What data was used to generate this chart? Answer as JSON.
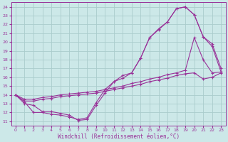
{
  "xlabel": "Windchill (Refroidissement éolien,°C)",
  "background_color": "#cce8e8",
  "grid_color": "#aacccc",
  "line_color": "#993399",
  "xlim": [
    -0.5,
    23.5
  ],
  "ylim": [
    10.5,
    24.5
  ],
  "xticks": [
    0,
    1,
    2,
    3,
    4,
    5,
    6,
    7,
    8,
    9,
    10,
    11,
    12,
    13,
    14,
    15,
    16,
    17,
    18,
    19,
    20,
    21,
    22,
    23
  ],
  "yticks": [
    11,
    12,
    13,
    14,
    15,
    16,
    17,
    18,
    19,
    20,
    21,
    22,
    23,
    24
  ],
  "curve_arch_x": [
    0,
    1,
    2,
    3,
    4,
    5,
    6,
    7,
    8,
    9,
    10,
    11,
    12,
    13,
    14,
    15,
    16,
    17,
    18,
    19,
    20,
    21,
    22,
    23
  ],
  "curve_arch_y": [
    14.0,
    13.0,
    12.8,
    12.1,
    12.1,
    11.9,
    11.7,
    11.1,
    11.2,
    12.8,
    14.2,
    15.5,
    16.2,
    16.5,
    18.2,
    20.5,
    21.4,
    22.3,
    23.8,
    24.0,
    23.1,
    20.6,
    19.8,
    17.0
  ],
  "curve_dip_x": [
    0,
    1,
    2,
    3,
    4,
    5,
    6,
    7,
    8,
    9,
    10,
    11,
    12,
    13,
    14,
    15,
    16,
    17,
    18,
    19,
    20,
    21,
    22,
    23
  ],
  "curve_dip_y": [
    14.0,
    13.2,
    12.0,
    12.0,
    11.8,
    11.7,
    11.5,
    11.2,
    11.4,
    13.1,
    14.6,
    15.5,
    15.9,
    16.5,
    18.2,
    20.5,
    21.5,
    22.3,
    23.8,
    24.0,
    23.1,
    20.6,
    19.5,
    16.6
  ],
  "curve_lin1_x": [
    0,
    1,
    2,
    3,
    4,
    5,
    6,
    7,
    8,
    9,
    10,
    11,
    12,
    13,
    14,
    15,
    16,
    17,
    18,
    19,
    20,
    21,
    22,
    23
  ],
  "curve_lin1_y": [
    14.0,
    13.5,
    13.5,
    13.7,
    13.8,
    14.0,
    14.1,
    14.2,
    14.3,
    14.4,
    14.6,
    14.8,
    15.0,
    15.3,
    15.5,
    15.8,
    16.0,
    16.3,
    16.5,
    16.8,
    20.5,
    18.0,
    16.5,
    16.6
  ],
  "curve_lin2_x": [
    0,
    1,
    2,
    3,
    4,
    5,
    6,
    7,
    8,
    9,
    10,
    11,
    12,
    13,
    14,
    15,
    16,
    17,
    18,
    19,
    20,
    21,
    22,
    23
  ],
  "curve_lin2_y": [
    14.0,
    13.3,
    13.3,
    13.5,
    13.6,
    13.8,
    13.9,
    14.0,
    14.1,
    14.2,
    14.4,
    14.6,
    14.8,
    15.0,
    15.2,
    15.5,
    15.7,
    15.9,
    16.2,
    16.4,
    16.5,
    15.8,
    16.0,
    16.5
  ]
}
